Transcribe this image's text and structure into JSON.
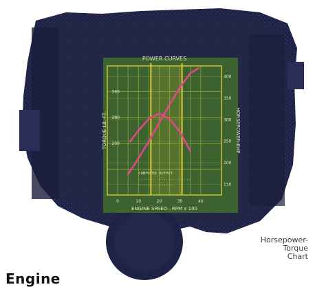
{
  "caption": {
    "lines": [
      "Horsepower-",
      "Torque",
      "Chart"
    ]
  },
  "heading": {
    "text": "Engine"
  },
  "colors": {
    "engine_dark": "#1c1f3f",
    "engine_mid": "#2e3360",
    "chart_panel": "#3f6a2c",
    "grid": "#d9c834",
    "grid_faint": "#a9b23a",
    "curve": "#e0488a",
    "tick_text": "#e8e4c0"
  },
  "chart_data": {
    "type": "line",
    "title": "POWER CURVES",
    "xlabel": "ENGINE SPEED—RPM x 100",
    "ylabel_left": "TORQUE LB.-FT.",
    "ylabel_right": "HORSEPOWER-BHP",
    "xlim": [
      0,
      55
    ],
    "x_ticks": [
      5,
      10,
      15,
      20,
      25,
      30,
      35,
      40,
      45
    ],
    "x_tick_labels": [
      "0",
      "10",
      "20",
      "30",
      "40"
    ],
    "x_tick_label_values": [
      5,
      15,
      25,
      35,
      45
    ],
    "ylim_left": [
      200,
      400
    ],
    "y_left_ticks": [
      240,
      280,
      320,
      360,
      400
    ],
    "y_left_tick_labels": [
      "",
      "200",
      "280",
      "360",
      ""
    ],
    "ylim_right": [
      100,
      400
    ],
    "y_right_tick_labels": [
      "400",
      "350",
      "300",
      "250",
      "200",
      "150"
    ],
    "y_right_tick_values": [
      375,
      325,
      275,
      225,
      175,
      125
    ],
    "grid": true,
    "highlight_x": [
      21,
      36
    ],
    "series": [
      {
        "axis": "right",
        "x": [
          10,
          15,
          20,
          25,
          30,
          35,
          40,
          44
        ],
        "y": [
          148,
          185,
          225,
          268,
          310,
          350,
          383,
          395
        ]
      },
      {
        "axis": "left",
        "x": [
          11,
          15,
          20,
          25,
          30,
          35,
          40
        ],
        "y": [
          283,
          300,
          318,
          326,
          318,
          298,
          268
        ]
      }
    ],
    "annotation_lines": [
      "COMPUTER OUTPUT",
      "....... ........ ......",
      "........ ......"
    ]
  }
}
